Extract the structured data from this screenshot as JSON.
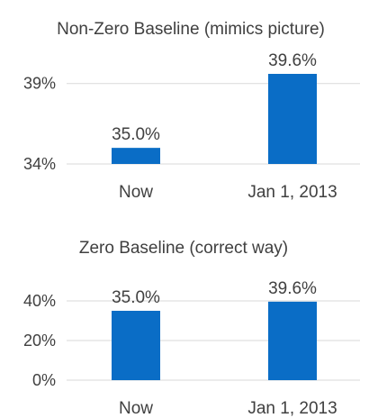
{
  "chart_data": [
    {
      "type": "bar",
      "title": "Non-Zero Baseline (mimics picture)",
      "categories": [
        "Now",
        "Jan 1, 2013"
      ],
      "values": [
        35.0,
        39.6
      ],
      "data_labels": [
        "35.0%",
        "39.6%"
      ],
      "ylim": [
        34,
        41
      ],
      "yticks": [
        34,
        39
      ],
      "ytick_labels": [
        "34%",
        "39%"
      ],
      "grid": true,
      "color": "#0a6dc6"
    },
    {
      "type": "bar",
      "title": "Zero Baseline (correct way)",
      "categories": [
        "Now",
        "Jan 1, 2013"
      ],
      "values": [
        35.0,
        39.6
      ],
      "data_labels": [
        "35.0%",
        "39.6%"
      ],
      "ylim": [
        0,
        40
      ],
      "yticks": [
        0,
        20,
        40
      ],
      "ytick_labels": [
        "0%",
        "20%",
        "40%"
      ],
      "grid": true,
      "color": "#0a6dc6"
    }
  ]
}
